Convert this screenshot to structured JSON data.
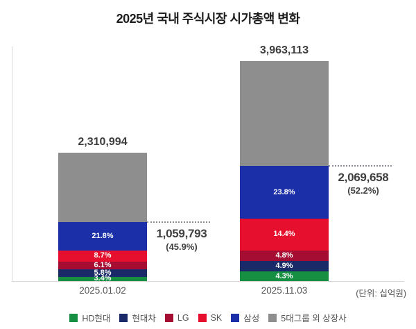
{
  "title": "2025년 국내 주식시장 시가총액 변화",
  "unit_note": "(단위: 십억원)",
  "legend": [
    {
      "label": "HD현대",
      "color": "#168f42"
    },
    {
      "label": "현대차",
      "color": "#1a2a68"
    },
    {
      "label": "LG",
      "color": "#a60d33"
    },
    {
      "label": "SK",
      "color": "#e60f2e"
    },
    {
      "label": "삼성",
      "color": "#1b2fa8"
    },
    {
      "label": "5대그룹 외 상장사",
      "color": "#8e8e8e"
    }
  ],
  "chart_data": {
    "type": "bar",
    "subtype": "stacked",
    "legend_position": "bottom",
    "grid": false,
    "unit": "십억원",
    "bars": [
      {
        "category": "2025.01.02",
        "total": 2310994,
        "total_label": "2,310,994",
        "segments": [
          {
            "name": "HD현대",
            "pct": 3.4,
            "label": "3.4%"
          },
          {
            "name": "현대차",
            "pct": 5.8,
            "label": "5.8%"
          },
          {
            "name": "LG",
            "pct": 6.1,
            "label": "6.1%"
          },
          {
            "name": "SK",
            "pct": 8.7,
            "label": "8.7%"
          },
          {
            "name": "삼성",
            "pct": 21.8,
            "label": "21.8%"
          },
          {
            "name": "5대그룹 외 상장사",
            "pct": 54.2,
            "label": ""
          }
        ],
        "annotation": {
          "value": 1059793,
          "value_label": "1,059,793",
          "pct_label": "(45.9%)"
        }
      },
      {
        "category": "2025.11.03",
        "total": 3963113,
        "total_label": "3,963,113",
        "segments": [
          {
            "name": "HD현대",
            "pct": 4.3,
            "label": "4.3%"
          },
          {
            "name": "현대차",
            "pct": 4.9,
            "label": "4.9%"
          },
          {
            "name": "LG",
            "pct": 4.8,
            "label": "4.8%"
          },
          {
            "name": "SK",
            "pct": 14.4,
            "label": "14.4%"
          },
          {
            "name": "삼성",
            "pct": 23.8,
            "label": "23.8%"
          },
          {
            "name": "5대그룹 외 상장사",
            "pct": 47.8,
            "label": ""
          }
        ],
        "annotation": {
          "value": 2069658,
          "value_label": "2,069,658",
          "pct_label": "(52.2%)"
        }
      }
    ]
  }
}
